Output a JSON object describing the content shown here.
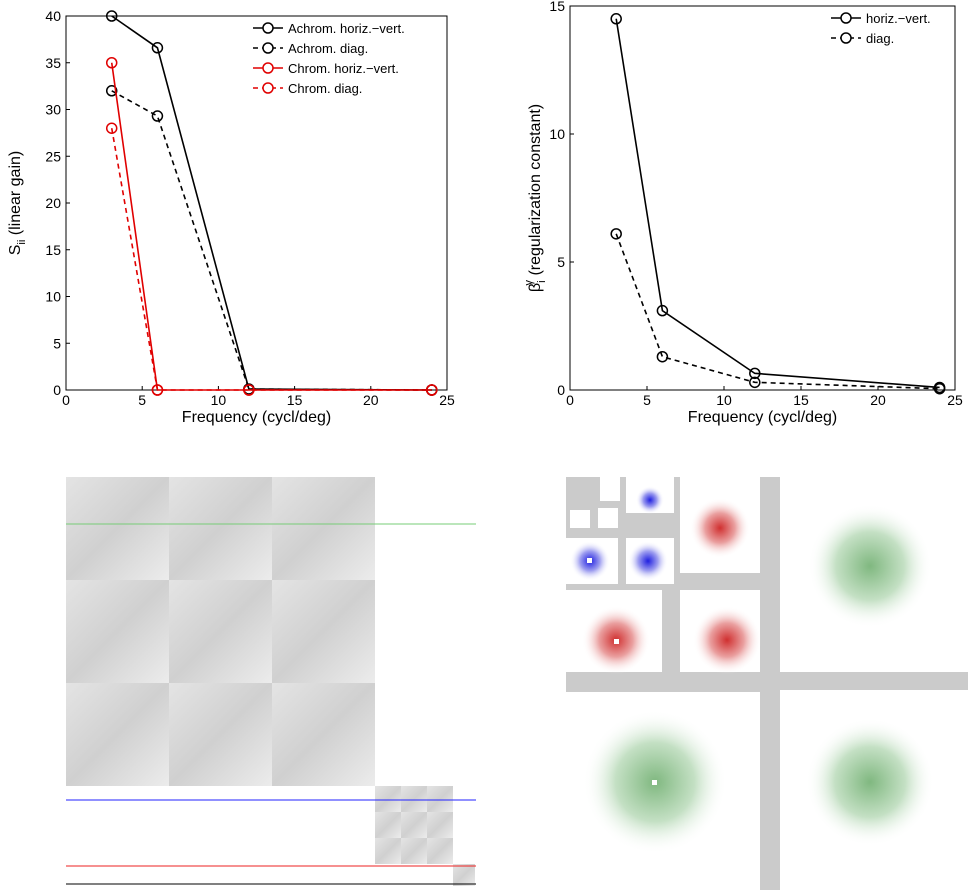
{
  "chart_data": [
    {
      "type": "line",
      "xlabel": "Frequency (cycl/deg)",
      "ylabel": "S",
      "ylabel_sub": "ii",
      "ylabel_rest": " (linear gain)",
      "x": [
        3,
        6,
        12,
        24
      ],
      "xlim": [
        0,
        25
      ],
      "xticks": [
        0,
        5,
        10,
        15,
        20,
        25
      ],
      "ylim": [
        0,
        40
      ],
      "yticks": [
        0,
        5,
        10,
        15,
        20,
        25,
        30,
        35,
        40
      ],
      "legend": "upper right",
      "series": [
        {
          "name": "Achrom. horiz.−vert.",
          "color": "#000000",
          "dashed": false,
          "values": [
            40,
            36.6,
            0.1,
            0
          ]
        },
        {
          "name": "Achrom. diag.",
          "color": "#000000",
          "dashed": true,
          "values": [
            32,
            29.3,
            0.1,
            0
          ]
        },
        {
          "name": "Chrom. horiz.−vert.",
          "color": "#e00000",
          "dashed": false,
          "values": [
            35,
            0,
            0,
            0
          ]
        },
        {
          "name": "Chrom. diag.",
          "color": "#e00000",
          "dashed": true,
          "values": [
            28,
            0,
            0,
            0
          ]
        }
      ]
    },
    {
      "type": "line",
      "xlabel": "Frequency (cycl/deg)",
      "ylabel": "β",
      "ylabel_sub": "i",
      "ylabel_sup": "γ",
      "ylabel_rest": " (regularization constant)",
      "x": [
        3,
        6,
        12,
        24
      ],
      "xlim": [
        0,
        25
      ],
      "xticks": [
        0,
        5,
        10,
        15,
        20,
        25
      ],
      "ylim": [
        0,
        15
      ],
      "yticks": [
        0,
        5,
        10,
        15
      ],
      "legend": "upper right",
      "series": [
        {
          "name": "horiz.−vert.",
          "color": "#000000",
          "dashed": false,
          "values": [
            14.5,
            3.1,
            0.65,
            0.1
          ]
        },
        {
          "name": "diag.",
          "color": "#000000",
          "dashed": true,
          "values": [
            6.1,
            1.3,
            0.3,
            0.05
          ]
        }
      ]
    }
  ]
}
